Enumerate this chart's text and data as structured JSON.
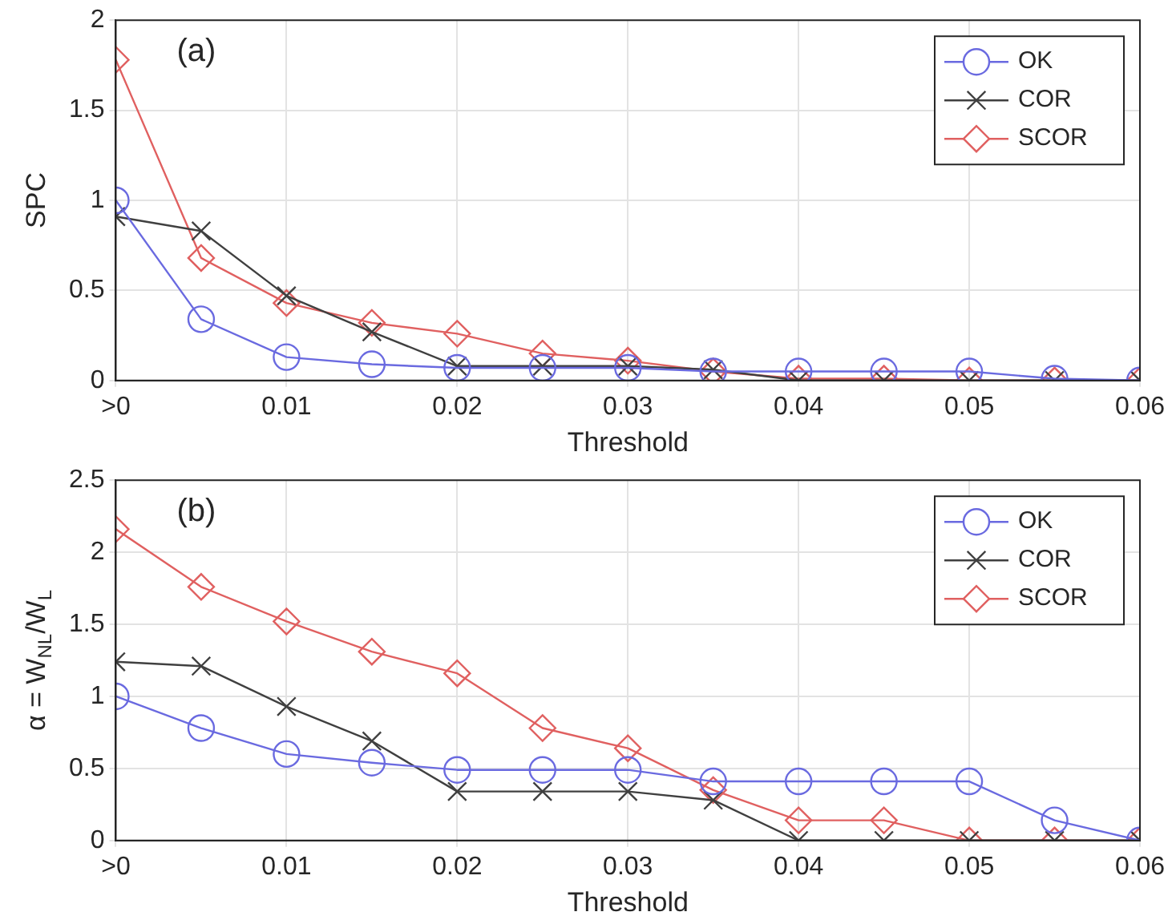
{
  "chart_data": [
    {
      "type": "line",
      "ylabel": "SPC",
      "xlabel": "Threshold",
      "annotations": [
        "(a)"
      ],
      "x": [
        0,
        0.005,
        0.01,
        0.015,
        0.02,
        0.025,
        0.03,
        0.035,
        0.04,
        0.045,
        0.05,
        0.055,
        0.06
      ],
      "xlim": [
        0,
        0.06
      ],
      "xticks": [
        {
          "value": 0,
          "label": ">0"
        },
        0.01,
        0.02,
        0.03,
        0.04,
        0.05,
        0.06
      ],
      "ylim": [
        0,
        2
      ],
      "yticks": [
        0,
        0.5,
        1,
        1.5,
        2
      ],
      "grid": true,
      "legend": "top right",
      "line_style": "solid",
      "series": [
        {
          "name": "OK",
          "color": "#6a6ae0",
          "marker": "circle",
          "values": [
            1,
            0.34,
            0.13,
            0.09,
            0.07,
            0.07,
            0.07,
            0.05,
            0.05,
            0.05,
            0.05,
            0.01,
            0
          ]
        },
        {
          "name": "COR",
          "color": "#404040",
          "marker": "cross",
          "values": [
            0.91,
            0.83,
            0.47,
            0.27,
            0.08,
            0.08,
            0.08,
            0.06,
            0,
            0,
            0,
            0,
            0
          ]
        },
        {
          "name": "SCOR",
          "color": "#e06060",
          "marker": "diamond",
          "values": [
            1.78,
            0.68,
            0.43,
            0.32,
            0.26,
            0.15,
            0.11,
            0.05,
            0.01,
            0.01,
            0,
            0,
            0
          ]
        }
      ]
    },
    {
      "type": "line",
      "ylabel": "α = W$_{NL}$/W$_{L}$",
      "xlabel": "Threshold",
      "annotations": [
        "(b)"
      ],
      "x": [
        0,
        0.005,
        0.01,
        0.015,
        0.02,
        0.025,
        0.03,
        0.035,
        0.04,
        0.045,
        0.05,
        0.055,
        0.06
      ],
      "xlim": [
        0,
        0.06
      ],
      "xticks": [
        {
          "value": 0,
          "label": ">0"
        },
        0.01,
        0.02,
        0.03,
        0.04,
        0.05,
        0.06
      ],
      "ylim": [
        0,
        2.5
      ],
      "yticks": [
        0,
        0.5,
        1,
        1.5,
        2,
        2.5
      ],
      "grid": true,
      "legend": "top right",
      "line_style": "solid",
      "series": [
        {
          "name": "OK",
          "color": "#6a6ae0",
          "marker": "circle",
          "values": [
            1,
            0.78,
            0.6,
            0.54,
            0.49,
            0.49,
            0.49,
            0.41,
            0.41,
            0.41,
            0.41,
            0.14,
            0
          ]
        },
        {
          "name": "COR",
          "color": "#404040",
          "marker": "cross",
          "values": [
            1.24,
            1.21,
            0.93,
            0.69,
            0.34,
            0.34,
            0.34,
            0.28,
            0,
            0,
            0,
            0,
            0
          ]
        },
        {
          "name": "SCOR",
          "color": "#e06060",
          "marker": "diamond",
          "values": [
            2.16,
            1.76,
            1.52,
            1.31,
            1.16,
            0.78,
            0.64,
            0.35,
            0.14,
            0.14,
            0,
            0,
            0
          ]
        }
      ]
    }
  ]
}
